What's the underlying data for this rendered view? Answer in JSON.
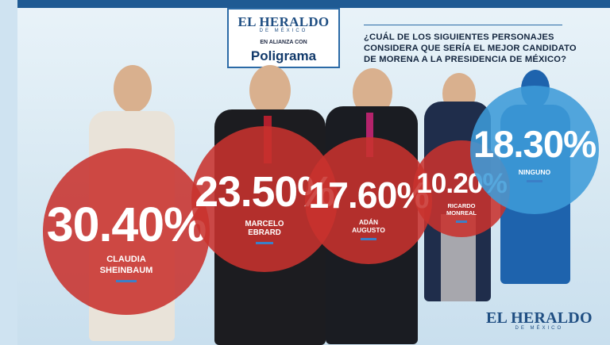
{
  "header": {
    "brand": "EL HERALDO",
    "brand_sub": "DE MÉXICO",
    "alliance": "EN ALIANZA CON",
    "partner": "Poligrama"
  },
  "question": "¿CUÁL DE LOS SIGUIENTES PERSONAJES CONSIDERA QUE SERÍA EL MEJOR CANDIDATO DE MORENA A LA PRESIDENCIA DE MÉXICO?",
  "footer": {
    "brand": "EL HERALDO",
    "brand_sub": "DE MÉXICO"
  },
  "colors": {
    "circle_red": "#c8322e",
    "circle_blue": "#3d9bd8",
    "dash_blue": "#3b7fc7",
    "silhouette": "#1e63ad"
  },
  "chart_data": {
    "type": "bubble",
    "title": "¿CUÁL DE LOS SIGUIENTES PERSONAJES CONSIDERA QUE SERÍA EL MEJOR CANDIDATO DE MORENA A LA PRESIDENCIA DE MÉXICO?",
    "unit": "%",
    "items": [
      {
        "label_lines": [
          "CLAUDIA",
          "SHEINBAUM"
        ],
        "value": 30.4,
        "value_label": "30.40%",
        "color": "#c8322e"
      },
      {
        "label_lines": [
          "MARCELO",
          "EBRARD"
        ],
        "value": 23.5,
        "value_label": "23.50%",
        "color": "#c8322e"
      },
      {
        "label_lines": [
          "ADÁN",
          "AUGUSTO"
        ],
        "value": 17.6,
        "value_label": "17.60%",
        "color": "#c8322e"
      },
      {
        "label_lines": [
          "RICARDO",
          "MONREAL"
        ],
        "value": 10.2,
        "value_label": "10.20%",
        "color": "#c8322e"
      },
      {
        "label_lines": [
          "NINGUNO"
        ],
        "value": 18.3,
        "value_label": "18.30%",
        "color": "#3d9bd8"
      }
    ]
  }
}
